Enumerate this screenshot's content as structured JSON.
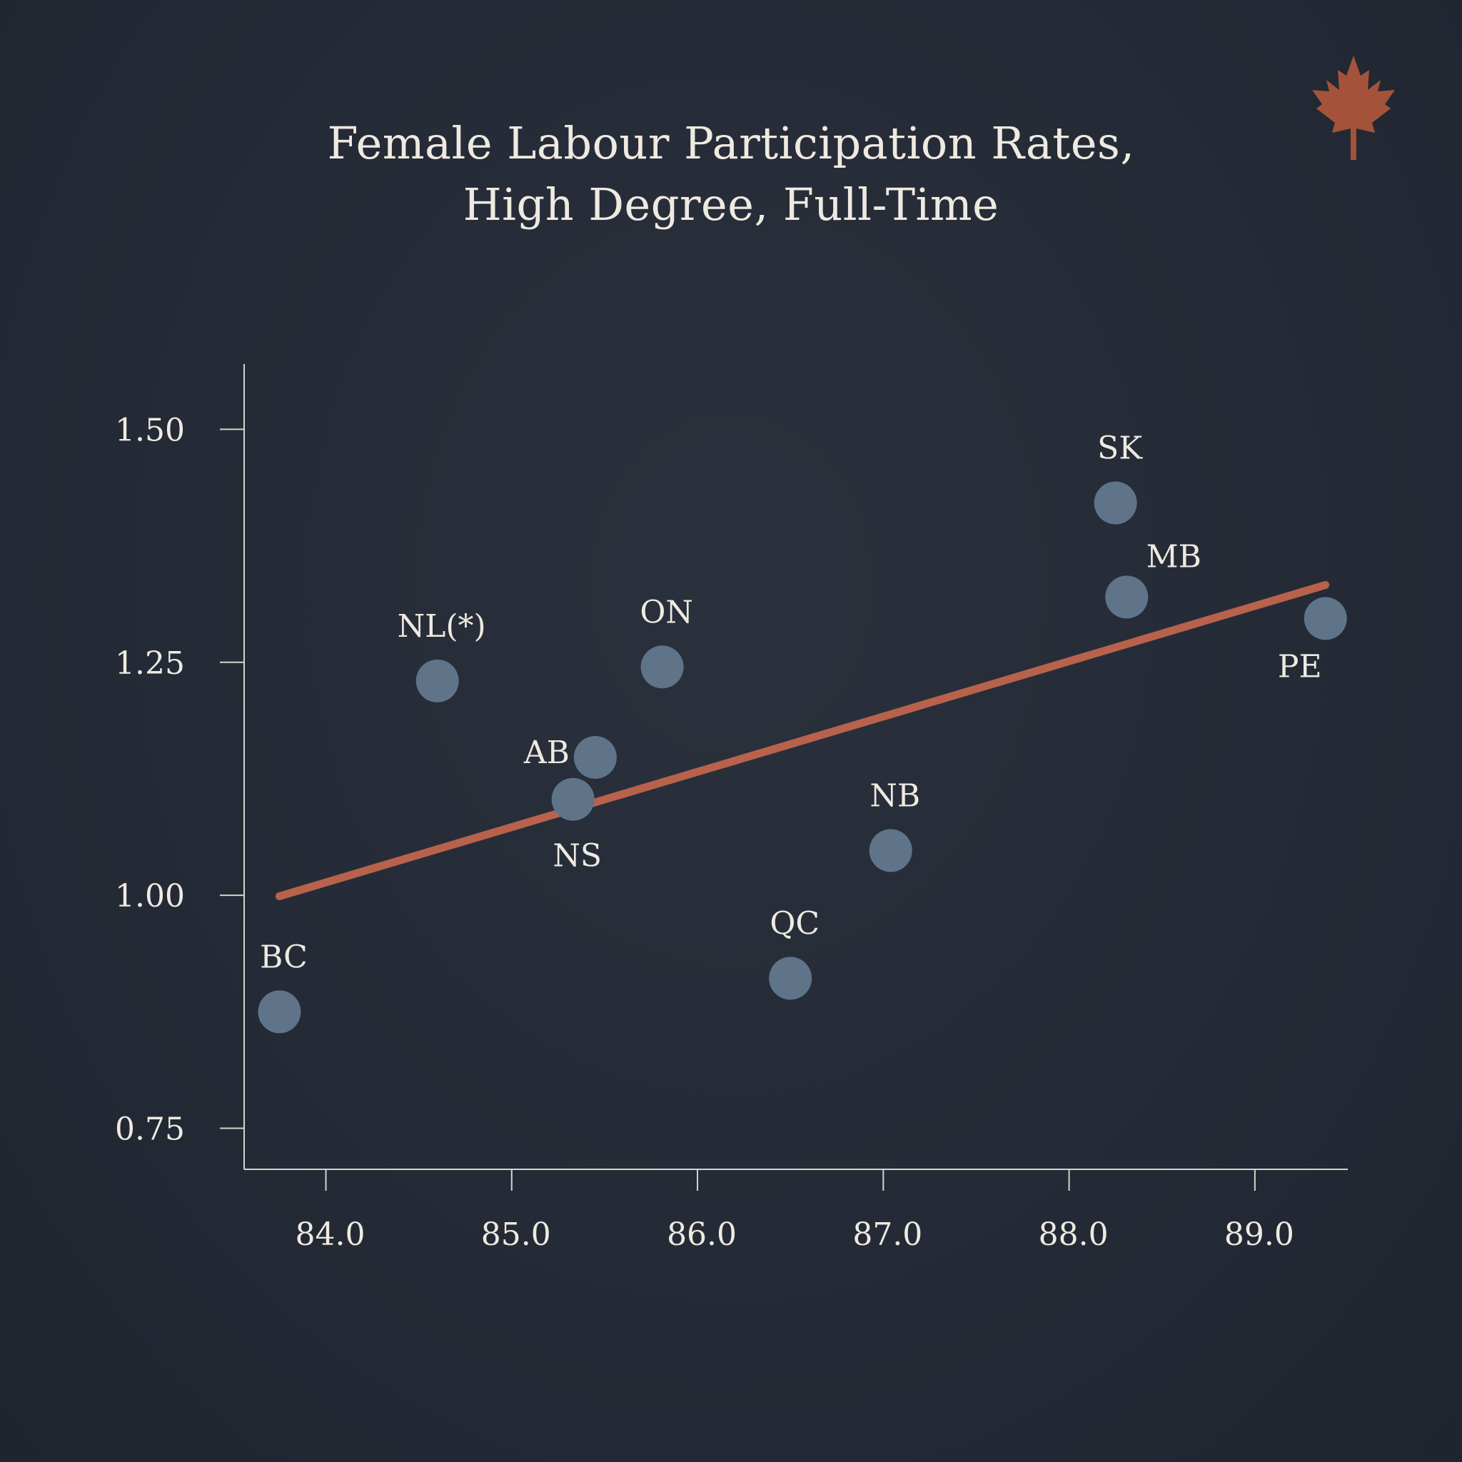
{
  "title_lines": [
    "Female Labour Participation Rates,",
    "High Degree, Full-Time"
  ],
  "colors": {
    "background": "#252b36",
    "points": "#5f7389",
    "trendline": "#b9624b",
    "text": "#efeae1",
    "axis": "#d8d3ca",
    "leaf": "#a4533a"
  },
  "icon": "maple-leaf-icon",
  "chart_data": {
    "type": "scatter",
    "title": "Female Labour Participation Rates, High Degree, Full-Time",
    "xlabel": "",
    "ylabel": "",
    "xlim": [
      83.56,
      89.5
    ],
    "ylim": [
      0.706,
      1.57
    ],
    "xticks": [
      84.0,
      85.0,
      86.0,
      87.0,
      88.0,
      89.0
    ],
    "xtick_labels": [
      "84.0",
      "85.0",
      "86.0",
      "87.0",
      "88.0",
      "89.0"
    ],
    "yticks": [
      0.75,
      1.0,
      1.25,
      1.5
    ],
    "ytick_labels": [
      "0.75",
      "1.00",
      "1.25",
      "1.50"
    ],
    "grid": false,
    "points": [
      {
        "label": "BC",
        "x": 83.75,
        "y": 0.875,
        "label_pos": "above"
      },
      {
        "label": "NL(*)",
        "x": 84.6,
        "y": 1.23,
        "label_pos": "above"
      },
      {
        "label": "AB",
        "x": 85.45,
        "y": 1.148,
        "label_pos": "left"
      },
      {
        "label": "NS",
        "x": 85.33,
        "y": 1.103,
        "label_pos": "below"
      },
      {
        "label": "ON",
        "x": 85.81,
        "y": 1.245,
        "label_pos": "above"
      },
      {
        "label": "QC",
        "x": 86.5,
        "y": 0.911,
        "label_pos": "above"
      },
      {
        "label": "NB",
        "x": 87.04,
        "y": 1.048,
        "label_pos": "above"
      },
      {
        "label": "SK",
        "x": 88.25,
        "y": 1.421,
        "label_pos": "above"
      },
      {
        "label": "MB",
        "x": 88.31,
        "y": 1.32,
        "label_pos": "above-right"
      },
      {
        "label": "PE",
        "x": 89.38,
        "y": 1.297,
        "label_pos": "below-left"
      }
    ],
    "trendline": {
      "x": [
        83.75,
        89.38
      ],
      "y": [
        0.999,
        1.333
      ]
    }
  }
}
